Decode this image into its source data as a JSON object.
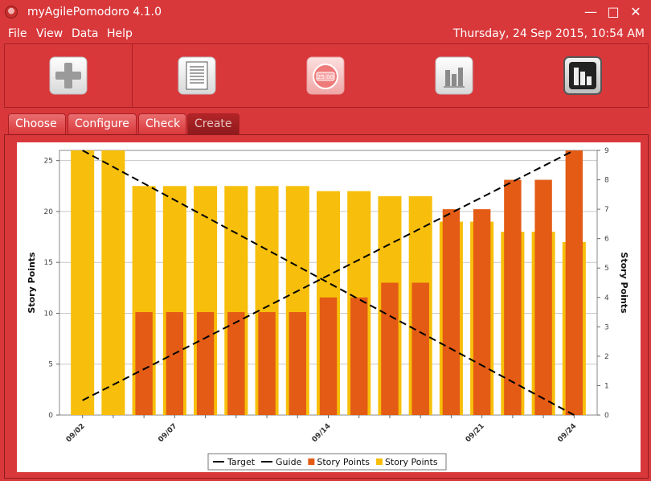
{
  "window": {
    "title": "myAgilePomodoro 4.1.0",
    "controls": [
      "—",
      "□",
      "✕"
    ]
  },
  "menu": {
    "file": "File",
    "view": "View",
    "data": "Data",
    "help": "Help"
  },
  "datetime": "Thursday, 24 Sep 2015, 10:54 AM",
  "toolbar": {
    "pomodoro_label": "25:00",
    "icons": [
      "add-icon",
      "report-icon",
      "pomodoro-timer-icon",
      "bar-chart-icon",
      "burndown-chart-icon"
    ]
  },
  "tabs": {
    "choose": "Choose",
    "configure": "Configure",
    "check": "Check",
    "create": "Create"
  },
  "colors": {
    "accent": "#d9383b",
    "orange_series": "#e35b14",
    "yellow_series": "#f7bf0b"
  },
  "chart_data": {
    "type": "bar",
    "ylabel": "Story Points",
    "y2label": "Story Points",
    "ylim": [
      0,
      26
    ],
    "y2lim": [
      0,
      9
    ],
    "yticks": [
      0,
      5,
      10,
      15,
      20,
      25
    ],
    "y2ticks": [
      0,
      1,
      2,
      3,
      4,
      5,
      6,
      7,
      8,
      9
    ],
    "xtick_labels": [
      {
        "label": "09/02",
        "index": 0
      },
      {
        "label": "09/07",
        "index": 3
      },
      {
        "label": "09/14",
        "index": 8
      },
      {
        "label": "09/21",
        "index": 13
      },
      {
        "label": "09/24",
        "index": 16
      }
    ],
    "series": [
      {
        "name": "Story Points",
        "color": "#f7bf0b",
        "axis": "left",
        "values": [
          26,
          26,
          22.5,
          22.5,
          22.5,
          22.5,
          22.5,
          22.5,
          22,
          22,
          21.5,
          21.5,
          19,
          19,
          18,
          18,
          17
        ]
      },
      {
        "name": "Story Points",
        "color": "#e35b14",
        "axis": "right",
        "values": [
          0,
          0,
          3.5,
          3.5,
          3.5,
          3.5,
          3.5,
          3.5,
          4,
          4,
          4.5,
          4.5,
          7,
          7,
          8,
          8,
          9
        ]
      }
    ],
    "lines": [
      {
        "name": "Target",
        "axis": "right",
        "from": [
          0,
          9
        ],
        "to": [
          16,
          0
        ]
      },
      {
        "name": "Guide",
        "axis": "right",
        "from": [
          0,
          0.5
        ],
        "to": [
          16,
          9
        ]
      }
    ],
    "legend": {
      "position": "bottom",
      "items": [
        {
          "label": "Target",
          "kind": "dash",
          "color": "#000000"
        },
        {
          "label": "Guide",
          "kind": "dash",
          "color": "#000000"
        },
        {
          "label": "Story Points",
          "kind": "box",
          "color": "#e35b14"
        },
        {
          "label": "Story Points",
          "kind": "box",
          "color": "#f7bf0b"
        }
      ]
    },
    "grid": true
  }
}
